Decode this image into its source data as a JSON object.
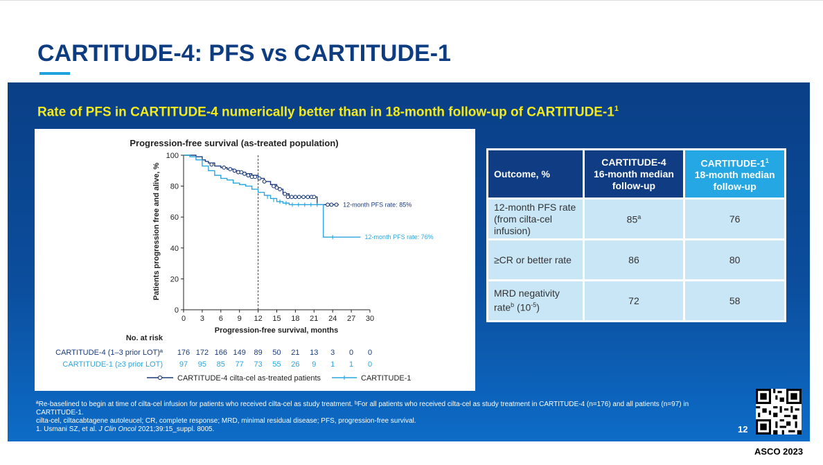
{
  "slide": {
    "title": "CARTITUDE-4: PFS vs CARTITUDE-1",
    "subtitle": "Rate of PFS in CARTITUDE-4 numerically better than in 18-month follow-up of CARTITUDE-1",
    "subtitle_sup": "1",
    "page_number": "12",
    "conference": "ASCO 2023"
  },
  "chart_data": {
    "type": "line",
    "title": "Progression-free survival (as-treated population)",
    "xlabel": "Progression-free survival, months",
    "ylabel": "Patients progression free and alive, %",
    "xlim": [
      0,
      30
    ],
    "ylim": [
      0,
      100
    ],
    "xticks": [
      0,
      3,
      6,
      9,
      12,
      15,
      18,
      21,
      24,
      27,
      30
    ],
    "yticks": [
      0,
      20,
      40,
      60,
      80,
      100
    ],
    "reference_line_x": 12,
    "series": [
      {
        "name": "CARTITUDE-4 cilta-cel as-treated patients",
        "color": "#1a3a7a",
        "marker": "circle",
        "x": [
          0,
          1,
          2,
          3,
          3.5,
          4,
          5,
          6,
          7,
          8,
          9,
          10,
          11,
          12,
          13,
          14,
          15,
          15.5,
          16,
          17,
          18,
          19,
          20,
          21,
          21.5,
          23,
          24,
          25
        ],
        "y": [
          100,
          100,
          99,
          97,
          96,
          95,
          93,
          92,
          91,
          90,
          89,
          88,
          87,
          85,
          83,
          81,
          79,
          78,
          75,
          73,
          73,
          73,
          73,
          73,
          68,
          68,
          68,
          68
        ],
        "censor_x": [
          4.5,
          6.5,
          7.5,
          8.2,
          8.8,
          9.3,
          9.8,
          10.4,
          11,
          11.5,
          12.2,
          13,
          14.5,
          15,
          15.5,
          16.3,
          16.8,
          17.4,
          18,
          18.6,
          19.3,
          20,
          20.6,
          21,
          23.2,
          23.8,
          24.6
        ],
        "censor_y": [
          94,
          92,
          91,
          90,
          89,
          89,
          88,
          87,
          86,
          86,
          85,
          83,
          80,
          79,
          78,
          75,
          73,
          73,
          73,
          73,
          73,
          73,
          73,
          73,
          68,
          68,
          68
        ],
        "annotation": "12-month PFS rate: 85%"
      },
      {
        "name": "CARTITUDE-1",
        "color": "#2aa6df",
        "marker": "tick",
        "x": [
          0,
          1,
          2,
          3,
          4,
          5,
          6,
          7,
          8,
          9,
          10,
          11,
          12,
          13,
          14,
          15,
          16,
          17,
          18,
          19,
          20,
          21,
          22,
          22.5,
          24,
          26,
          28.5
        ],
        "y": [
          100,
          99,
          97,
          93,
          90,
          87,
          85,
          84,
          82,
          81,
          80,
          78,
          76,
          74,
          72,
          70,
          69,
          68,
          68,
          68,
          68,
          68,
          68,
          47,
          47,
          47,
          47
        ],
        "censor_x": [
          13.5,
          14.5,
          15.5,
          16.5,
          17.5,
          18.5,
          19.5,
          20.5,
          21.5,
          24
        ],
        "censor_y": [
          73,
          71,
          70,
          69,
          68,
          68,
          68,
          68,
          68,
          47
        ],
        "annotation": "12-month PFS rate: 76%"
      }
    ],
    "risk_table": {
      "header": "No. at risk",
      "rows": [
        {
          "label": "CARTITUDE-4 (1–3 prior LOT)ª",
          "values": [
            "176",
            "172",
            "166",
            "149",
            "89",
            "50",
            "21",
            "13",
            "3",
            "0",
            "0"
          ]
        },
        {
          "label": "CARTITUDE-1 (≥3 prior LOT)",
          "values": [
            "97",
            "95",
            "85",
            "77",
            "73",
            "55",
            "26",
            "9",
            "1",
            "1",
            "0"
          ]
        }
      ]
    },
    "legend": [
      {
        "label": "CARTITUDE-4 cilta-cel as-treated patients"
      },
      {
        "label": "CARTITUDE-1"
      }
    ]
  },
  "table": {
    "headers": [
      {
        "text": "Outcome, %"
      },
      {
        "line1": "CARTITUDE-4",
        "line2": "16-month median",
        "line3": "follow-up"
      },
      {
        "line1": "CARTITUDE-1",
        "sup": "1",
        "line2": "18-month median",
        "line3": "follow-up"
      }
    ],
    "rows": [
      {
        "outcome": "12-month PFS rate (from cilta-cel infusion)",
        "c4": "85",
        "c4_sup": "a",
        "c1": "76"
      },
      {
        "outcome": "≥CR or better rate",
        "c4": "86",
        "c1": "80"
      },
      {
        "outcome_prefix": "MRD negativity rate",
        "outcome_sup": "b",
        "outcome_suffix": " (10",
        "outcome_exp": "-5",
        "outcome_end": ")",
        "c4": "72",
        "c1": "58"
      }
    ]
  },
  "footnotes": {
    "line1": "ªRe-baselined to begin at time of cilta-cel infusion for patients who received cilta-cel as study treatment. ᵇFor all patients who received cilta-cel as study treatment in CARTITUDE-4 (n=176) and all patients (n=97) in CARTITUDE-1.",
    "line2": "cilta-cel, ciltacabtagene autoleucel; CR, complete response; MRD, minimal residual disease; PFS, progression-free survival.",
    "line3_prefix": "1. Usmani SZ, et al. ",
    "line3_journal": "J Clin Oncol",
    "line3_suffix": " 2021;39:15_suppl. 8005."
  },
  "colors": {
    "title": "#0e3c80",
    "subtitle": "#f2ea1d",
    "panel": "#0b4d9c",
    "cartitude4": "#1a3a7a",
    "cartitude1": "#2aa6df"
  }
}
